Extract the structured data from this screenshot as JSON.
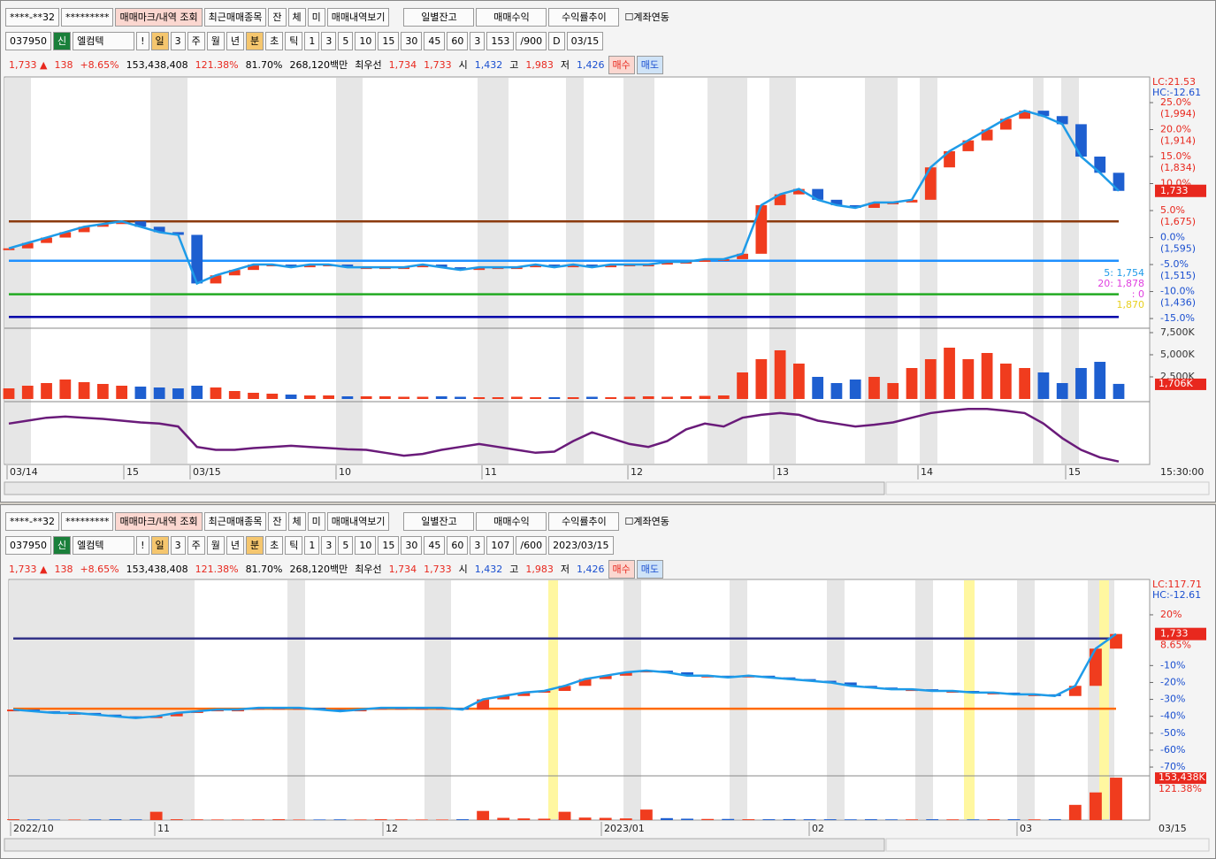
{
  "windows": [
    {
      "row1": [
        "****-**32",
        "*********",
        "매매마크/내역 조회",
        "최근매매종목",
        "잔",
        "체",
        "미",
        "매매내역보기",
        "일별잔고",
        "매매수익",
        "수익률추이",
        "계좌연동"
      ],
      "row2": [
        "037950",
        "신",
        "엘컴텍",
        "!",
        "일",
        "3",
        "주",
        "월",
        "년",
        "분",
        "초",
        "틱",
        "1",
        "3",
        "5",
        "10",
        "15",
        "30",
        "45",
        "60",
        "3",
        "153",
        "/900",
        "D",
        "03/15"
      ],
      "row3": [
        "1,733 ▲",
        "138",
        "+8.65%",
        "153,438,408",
        "121.38%",
        "81.70%",
        "268,120백만",
        "최우선",
        "1,734",
        "1,733",
        "시",
        "1,432",
        "고",
        "1,983",
        "저",
        "1,426",
        "매수",
        "매도"
      ],
      "chart": {
        "corner": [
          "LC:21.53",
          "HC:-12.61"
        ],
        "ylim": [
          -16.3,
          29.75
        ],
        "yticks": [
          {
            "value": 25,
            "label": "25.0%",
            "price": "(1,994)"
          },
          {
            "value": 20,
            "label": "20.0%",
            "price": "(1,914)"
          },
          {
            "value": 15,
            "label": "15.0%",
            "price": "(1,834)"
          },
          {
            "value": 10,
            "label": "10.0%"
          },
          {
            "value": 5,
            "label": "5.0%",
            "price": "(1,675)"
          },
          {
            "value": 0,
            "label": "0.0%",
            "price": "(1,595)"
          },
          {
            "value": -5,
            "label": "-5.0%",
            "price": "(1,515)"
          },
          {
            "value": -10,
            "label": "-10.0%",
            "price": "(1,436)"
          },
          {
            "value": -15,
            "label": "-15.0%"
          }
        ],
        "last_label": [
          "1,733"
        ],
        "close": [
          -2,
          -1,
          0,
          1,
          2,
          2.5,
          3,
          2,
          1,
          0.5,
          -8.5,
          -7,
          -6,
          -5,
          -5,
          -5.5,
          -5,
          -5,
          -5.5,
          -5.5,
          -5.5,
          -5.5,
          -5,
          -5.5,
          -6,
          -5.5,
          -5.5,
          -5.5,
          -5,
          -5.5,
          -5,
          -5.5,
          -5,
          -5,
          -5,
          -4.5,
          -4.5,
          -4,
          -4,
          -3,
          6,
          8,
          9,
          7,
          6,
          5.5,
          6.5,
          6.5,
          7,
          13,
          16,
          18,
          20,
          22,
          23.5,
          22.5,
          21,
          15,
          12,
          8.65
        ],
        "levels": [
          {
            "value": 3,
            "color": "#8b3a0e"
          },
          {
            "value": -4.3,
            "color": "#1e90ff"
          },
          {
            "value": -10.5,
            "color": "#22aa22"
          },
          {
            "value": -14.7,
            "color": "#0000aa"
          }
        ],
        "legend": [
          "5: 1,754",
          "20: 1,878",
          ": 0",
          "1,870"
        ],
        "volume": {
          "ylim": [
            0,
            8000
          ],
          "yticks": [
            {
              "value": 7500,
              "label": "7,500K"
            },
            {
              "value": 5000,
              "label": "5,000K"
            },
            {
              "value": 2500,
              "label": "2,500K"
            }
          ],
          "last_label": [
            "1,706K"
          ],
          "values": [
            1200,
            1500,
            1800,
            2200,
            1900,
            1700,
            1500,
            1400,
            1300,
            1200,
            1500,
            1300,
            900,
            700,
            600,
            500,
            400,
            400,
            300,
            300,
            300,
            250,
            250,
            300,
            250,
            200,
            200,
            250,
            200,
            200,
            200,
            250,
            200,
            250,
            300,
            250,
            300,
            350,
            400,
            3000,
            4500,
            5500,
            4000,
            2500,
            1800,
            2200,
            2500,
            1800,
            3500,
            4500,
            5800,
            4500,
            5200,
            4000,
            3500,
            3000,
            1800,
            3500,
            4200,
            1706
          ]
        },
        "oscillator": {
          "ylim": [
            0,
            100
          ],
          "values": [
            70,
            75,
            80,
            82,
            80,
            78,
            75,
            72,
            70,
            65,
            30,
            25,
            25,
            28,
            30,
            32,
            30,
            28,
            26,
            25,
            20,
            15,
            18,
            25,
            30,
            35,
            30,
            25,
            20,
            22,
            40,
            55,
            45,
            35,
            30,
            40,
            60,
            70,
            65,
            80,
            85,
            88,
            85,
            75,
            70,
            65,
            68,
            72,
            80,
            88,
            92,
            95,
            95,
            92,
            88,
            70,
            45,
            25,
            12,
            5
          ]
        },
        "dates": [
          "03/14",
          "15",
          "03/15",
          "10",
          "11",
          "12",
          "13",
          "14",
          "15"
        ],
        "end": "15:30:00"
      }
    },
    {
      "row1": [
        "****-**32",
        "*********",
        "매매마크/내역 조회",
        "최근매매종목",
        "잔",
        "체",
        "미",
        "매매내역보기",
        "일별잔고",
        "매매수익",
        "수익률추이",
        "계좌연동"
      ],
      "row2": [
        "037950",
        "신",
        "엘컴텍",
        "!",
        "일",
        "3",
        "주",
        "월",
        "년",
        "분",
        "초",
        "틱",
        "1",
        "3",
        "5",
        "10",
        "15",
        "30",
        "45",
        "60",
        "3",
        "107",
        "/600",
        "2023/03/15"
      ],
      "row3": [
        "1,733 ▲",
        "138",
        "+8.65%",
        "153,438,408",
        "121.38%",
        "81.70%",
        "268,120백만",
        "최우선",
        "1,734",
        "1,733",
        "시",
        "1,432",
        "고",
        "1,983",
        "저",
        "1,426",
        "매수",
        "매도"
      ],
      "chart": {
        "corner": [
          "LC:117.71",
          "HC:-12.61"
        ],
        "ylim": [
          -75.2,
          40.9
        ],
        "yticks": [
          {
            "value": 20,
            "label": "20%"
          },
          {
            "value": -10,
            "label": "-10%"
          },
          {
            "value": -20,
            "label": "-20%"
          },
          {
            "value": -30,
            "label": "-30%"
          },
          {
            "value": -40,
            "label": "-40%"
          },
          {
            "value": -50,
            "label": "-50%"
          },
          {
            "value": -60,
            "label": "-60%"
          },
          {
            "value": -70,
            "label": "-70%"
          }
        ],
        "last_label": [
          "1,733",
          "8.65%"
        ],
        "close": [
          -36,
          -37,
          -38,
          -38,
          -39,
          -40,
          -41,
          -40,
          -38,
          -37,
          -36,
          -36,
          -35,
          -35,
          -35,
          -36,
          -37,
          -36,
          -35,
          -35,
          -35,
          -35,
          -36,
          -30,
          -28,
          -26,
          -25,
          -22,
          -18,
          -16,
          -14,
          -13,
          -14,
          -16,
          -16,
          -17,
          -16,
          -17,
          -18,
          -19,
          -20,
          -22,
          -23,
          -24,
          -24,
          -25,
          -25,
          -26,
          -26,
          -27,
          -27,
          -28,
          -22,
          0,
          8.65
        ],
        "levels": [
          {
            "value": 6,
            "color": "#333388"
          },
          {
            "value": -35.5,
            "color": "#ff6a00"
          }
        ],
        "volume": {
          "ylim": [
            0,
            160000
          ],
          "yticks": [],
          "last_label": [
            "153,438K",
            "121.38%"
          ],
          "values": [
            3000,
            2500,
            2000,
            2000,
            2500,
            3000,
            2500,
            30000,
            3000,
            2500,
            2000,
            2000,
            2500,
            3000,
            2000,
            2000,
            2500,
            2000,
            3000,
            2500,
            2000,
            2000,
            3000,
            33000,
            8000,
            6000,
            5000,
            30000,
            9000,
            8000,
            6000,
            38000,
            7000,
            5000,
            4000,
            4000,
            3000,
            3000,
            3500,
            3000,
            3000,
            2500,
            3000,
            2500,
            2500,
            3000,
            2500,
            2500,
            3000,
            3000,
            2500,
            3000,
            55000,
            100000,
            153438
          ]
        },
        "dates": [
          "2022/10",
          "11",
          "12",
          "2023/01",
          "02",
          "03"
        ],
        "end": "03/15"
      }
    }
  ]
}
